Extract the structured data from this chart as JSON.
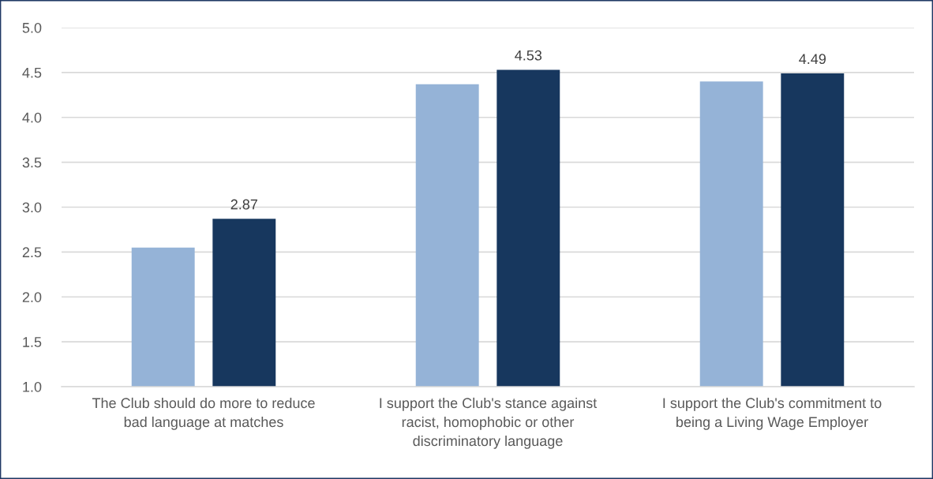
{
  "chart_data": {
    "type": "bar",
    "categories": [
      "The Club should do more to reduce\nbad language at matches",
      "I support the Club's stance against\nracist, homophobic or other\ndiscriminatory language",
      "I support the Club's commitment to\nbeing a Living Wage Employer"
    ],
    "series": [
      {
        "color": "#95b3d7",
        "values": [
          2.55,
          4.37,
          4.4
        ]
      },
      {
        "color": "#17375e",
        "values": [
          2.87,
          4.53,
          4.49
        ],
        "value_labels": [
          "2.87",
          "4.53",
          "4.49"
        ]
      }
    ],
    "ylim": [
      1.0,
      5.0
    ],
    "yticks": [
      {
        "value": 1.0,
        "label": "1.0"
      },
      {
        "value": 1.5,
        "label": "1.5"
      },
      {
        "value": 2.0,
        "label": "2.0"
      },
      {
        "value": 2.5,
        "label": "2.5"
      },
      {
        "value": 3.0,
        "label": "3.0"
      },
      {
        "value": 3.5,
        "label": "3.5"
      },
      {
        "value": 4.0,
        "label": "4.0"
      },
      {
        "value": 4.5,
        "label": "4.5"
      },
      {
        "value": 5.0,
        "label": "5.0"
      }
    ],
    "grid": "y",
    "legend": false
  }
}
